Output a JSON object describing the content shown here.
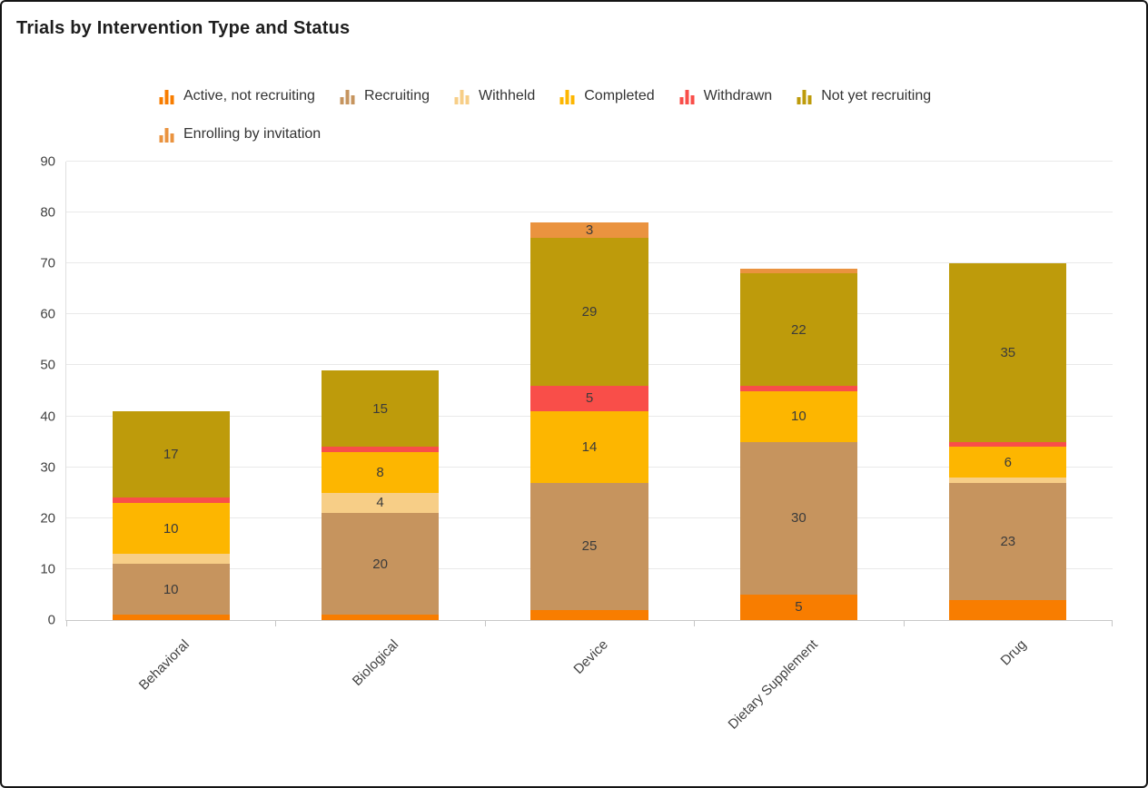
{
  "chart_data": {
    "type": "bar",
    "stacked": true,
    "title": "Trials by Intervention Type and Status",
    "categories": [
      "Behavioral",
      "Biological",
      "Device",
      "Dietary Supplement",
      "Drug"
    ],
    "series": [
      {
        "name": "Active, not recruiting",
        "color": "#F87D00",
        "values": [
          1,
          1,
          2,
          5,
          4
        ],
        "labels": [
          "",
          "",
          "",
          "5",
          ""
        ]
      },
      {
        "name": "Recruiting",
        "color": "#C6945E",
        "values": [
          10,
          20,
          25,
          30,
          23
        ],
        "labels": [
          "10",
          "20",
          "25",
          "30",
          "23"
        ]
      },
      {
        "name": "Withheld",
        "color": "#F7CE87",
        "values": [
          2,
          4,
          0,
          0,
          1
        ],
        "labels": [
          "",
          "4",
          "",
          "",
          ""
        ]
      },
      {
        "name": "Completed",
        "color": "#FDB600",
        "values": [
          10,
          8,
          14,
          10,
          6
        ],
        "labels": [
          "10",
          "8",
          "14",
          "10",
          "6"
        ]
      },
      {
        "name": "Withdrawn",
        "color": "#F94E49",
        "values": [
          1,
          1,
          5,
          1,
          1
        ],
        "labels": [
          "",
          "",
          "5",
          "",
          ""
        ]
      },
      {
        "name": "Not yet recruiting",
        "color": "#BE9B0B",
        "values": [
          17,
          15,
          29,
          22,
          35
        ],
        "labels": [
          "17",
          "15",
          "29",
          "22",
          "35"
        ]
      },
      {
        "name": "Enrolling by invitation",
        "color": "#EA933F",
        "values": [
          0,
          0,
          3,
          1,
          0
        ],
        "labels": [
          "",
          "",
          "3",
          "",
          ""
        ]
      }
    ],
    "totals": [
      41,
      49,
      78,
      69,
      70
    ],
    "y_ticks": [
      0,
      10,
      20,
      30,
      40,
      50,
      60,
      70,
      80,
      90
    ],
    "ylim": [
      0,
      90
    ],
    "grid": true,
    "legend_position": "top",
    "legend_rows": [
      6,
      1
    ],
    "label_color": "#3b3b3b",
    "axis_text_color": "#424242"
  }
}
